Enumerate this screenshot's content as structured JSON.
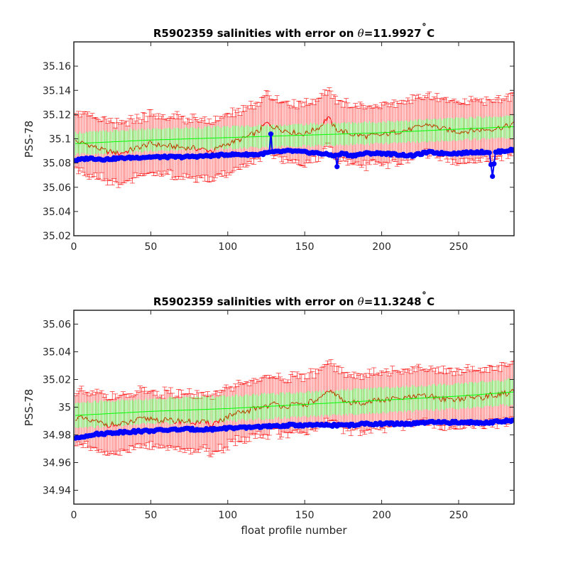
{
  "chart_data": [
    {
      "type": "line",
      "title_prefix": "R5902359 salinities with error on ",
      "title_theta": "θ",
      "title_value": "=11.9927",
      "title_deg": "˚",
      "title_unit": "C",
      "xlabel": "",
      "ylabel": "PSS-78",
      "xlim": [
        0,
        286
      ],
      "ylim": [
        35.02,
        35.18
      ],
      "xticks": [
        0,
        50,
        100,
        150,
        200,
        250
      ],
      "yticks": [
        35.02,
        35.04,
        35.06,
        35.08,
        35.1,
        35.12,
        35.14,
        35.16
      ],
      "ytick_labels": [
        "35.02",
        "35.04",
        "35.06",
        "35.08",
        "35.1",
        "35.12",
        "35.14",
        "35.16"
      ],
      "grid": false,
      "legend": "none",
      "n_profiles": 286,
      "series": [
        {
          "color": "#ff0000",
          "style": "line with error bars",
          "anchors_x": [
            0,
            10,
            20,
            30,
            40,
            50,
            60,
            70,
            80,
            90,
            100,
            110,
            120,
            125,
            130,
            140,
            150,
            160,
            165,
            170,
            180,
            190,
            200,
            210,
            220,
            230,
            240,
            250,
            260,
            270,
            280,
            286
          ],
          "anchors_y": [
            35.098,
            35.095,
            35.09,
            35.088,
            35.092,
            35.096,
            35.094,
            35.093,
            35.092,
            35.09,
            35.096,
            35.1,
            35.106,
            35.113,
            35.11,
            35.106,
            35.104,
            35.11,
            35.118,
            35.108,
            35.104,
            35.102,
            35.103,
            35.106,
            35.108,
            35.112,
            35.108,
            35.106,
            35.107,
            35.108,
            35.11,
            35.112
          ],
          "error": 0.024
        },
        {
          "color": "#00ff00",
          "style": "line with error bars",
          "anchors_x": [
            0,
            50,
            100,
            150,
            200,
            250,
            286
          ],
          "anchors_y": [
            35.096,
            35.099,
            35.101,
            35.103,
            35.105,
            35.108,
            35.11
          ],
          "error": 0.009
        },
        {
          "color": "#0000ff",
          "style": "line with markers",
          "anchors_x": [
            0,
            10,
            20,
            30,
            50,
            70,
            90,
            100,
            110,
            120,
            128,
            130,
            140,
            150,
            160,
            170,
            175,
            180,
            190,
            200,
            210,
            220,
            230,
            240,
            250,
            260,
            268,
            270,
            272,
            274,
            280,
            286
          ],
          "anchors_y": [
            35.082,
            35.084,
            35.083,
            35.084,
            35.085,
            35.085,
            35.086,
            35.087,
            35.087,
            35.087,
            35.089,
            35.089,
            35.09,
            35.089,
            35.088,
            35.086,
            35.088,
            35.086,
            35.088,
            35.088,
            35.087,
            35.086,
            35.089,
            35.088,
            35.088,
            35.089,
            35.089,
            35.089,
            35.069,
            35.089,
            35.09,
            35.091
          ],
          "spikes": [
            {
              "x": 128,
              "y": 35.104
            },
            {
              "x": 171,
              "y": 35.077
            },
            {
              "x": 272,
              "y": 35.069
            }
          ]
        }
      ]
    },
    {
      "type": "line",
      "title_prefix": "R5902359 salinities with error on ",
      "title_theta": "θ",
      "title_value": "=11.3248",
      "title_deg": "˚",
      "title_unit": "C",
      "xlabel": "float profile number",
      "ylabel": "PSS-78",
      "xlim": [
        0,
        286
      ],
      "ylim": [
        34.93,
        35.07
      ],
      "xticks": [
        0,
        50,
        100,
        150,
        200,
        250
      ],
      "yticks": [
        34.94,
        34.96,
        34.98,
        35.0,
        35.02,
        35.04,
        35.06
      ],
      "ytick_labels": [
        "34.94",
        "34.96",
        "34.98",
        "35",
        "35.02",
        "35.04",
        "35.06"
      ],
      "grid": false,
      "legend": "none",
      "n_profiles": 286,
      "series": [
        {
          "color": "#ff0000",
          "style": "line with error bars",
          "anchors_x": [
            0,
            10,
            20,
            30,
            40,
            50,
            60,
            70,
            80,
            90,
            100,
            110,
            120,
            130,
            140,
            150,
            160,
            168,
            175,
            180,
            190,
            200,
            210,
            220,
            230,
            240,
            250,
            260,
            270,
            280,
            286
          ],
          "anchors_y": [
            34.993,
            34.99,
            34.988,
            34.987,
            34.99,
            34.992,
            34.99,
            34.99,
            34.989,
            34.988,
            34.993,
            34.996,
            35.0,
            35.002,
            35.001,
            35.002,
            35.006,
            35.012,
            35.004,
            35.003,
            35.004,
            35.005,
            35.006,
            35.007,
            35.008,
            35.006,
            35.006,
            35.007,
            35.008,
            35.01,
            35.011
          ],
          "error": 0.02
        },
        {
          "color": "#00ff00",
          "style": "line with error bars",
          "anchors_x": [
            0,
            50,
            100,
            150,
            200,
            250,
            286
          ],
          "anchors_y": [
            34.994,
            34.997,
            34.999,
            35.002,
            35.005,
            35.008,
            35.011
          ],
          "error": 0.009
        },
        {
          "color": "#0000ff",
          "style": "line with markers",
          "anchors_x": [
            0,
            10,
            20,
            30,
            50,
            70,
            90,
            100,
            110,
            120,
            130,
            140,
            150,
            160,
            170,
            180,
            190,
            200,
            210,
            220,
            230,
            240,
            250,
            260,
            270,
            280,
            286
          ],
          "anchors_y": [
            34.977,
            34.98,
            34.981,
            34.982,
            34.983,
            34.984,
            34.984,
            34.985,
            34.985,
            34.986,
            34.986,
            34.987,
            34.987,
            34.987,
            34.987,
            34.987,
            34.988,
            34.988,
            34.988,
            34.988,
            34.989,
            34.989,
            34.989,
            34.989,
            34.989,
            34.99,
            34.99
          ]
        }
      ]
    }
  ]
}
